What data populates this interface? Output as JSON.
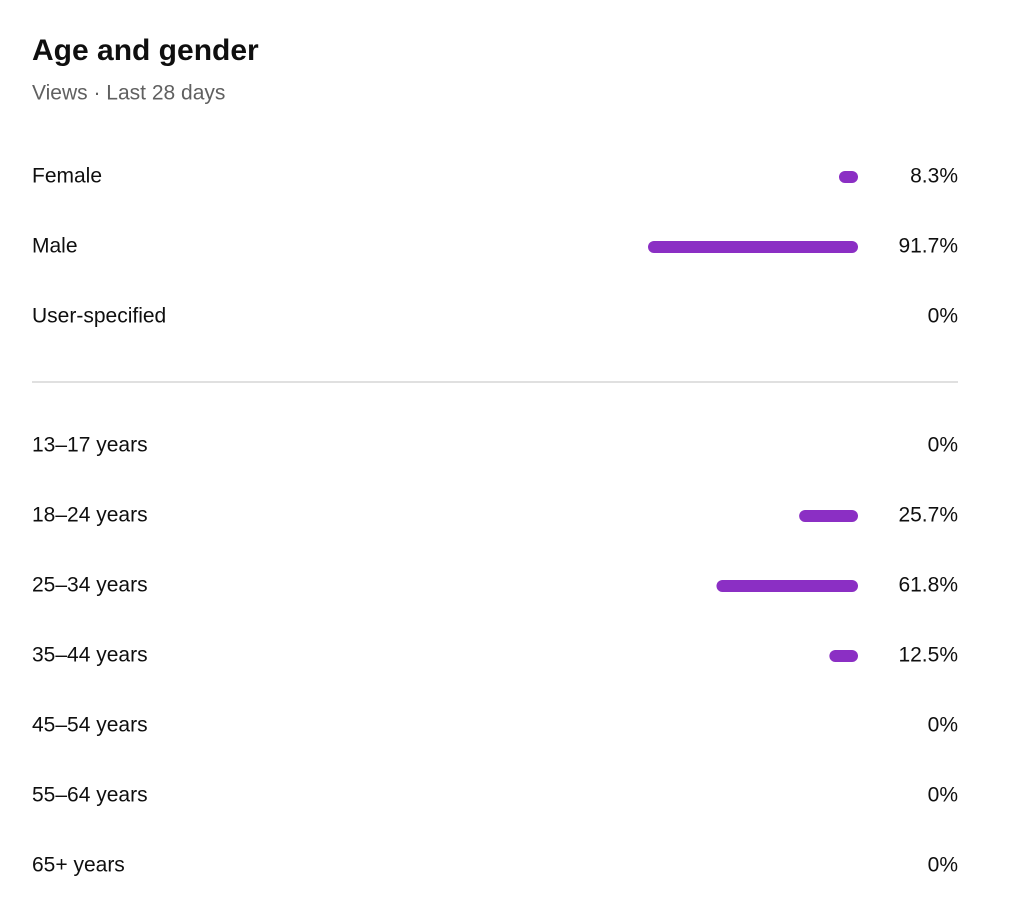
{
  "header": {
    "title": "Age and gender",
    "subtitle": "Views · Last 28 days"
  },
  "chart_data": [
    {
      "type": "hbar",
      "color": "#8b2fc4",
      "xlim": [
        0,
        100
      ],
      "categories": [
        "Female",
        "Male",
        "User-specified"
      ],
      "values": [
        8.3,
        91.7,
        0
      ],
      "value_labels": [
        "8.3%",
        "91.7%",
        "0%"
      ]
    },
    {
      "type": "hbar",
      "color": "#8b2fc4",
      "xlim": [
        0,
        100
      ],
      "categories": [
        "13–17 years",
        "18–24 years",
        "25–34 years",
        "35–44 years",
        "45–54 years",
        "55–64 years",
        "65+ years"
      ],
      "values": [
        0,
        25.7,
        61.8,
        12.5,
        0,
        0,
        0
      ],
      "value_labels": [
        "0%",
        "25.7%",
        "61.8%",
        "12.5%",
        "0%",
        "0%",
        "0%"
      ]
    }
  ]
}
